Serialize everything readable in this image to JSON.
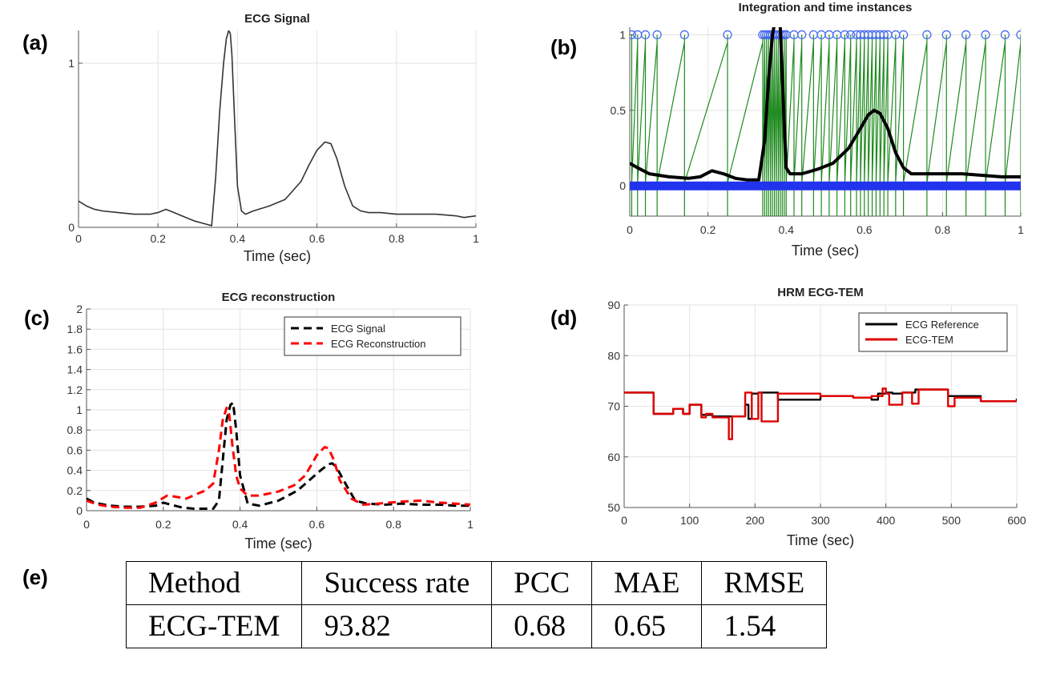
{
  "panel_labels": [
    "(a)",
    "(b)",
    "(c)",
    "(d)",
    "(e)"
  ],
  "chart_data": [
    {
      "id": "a",
      "type": "line",
      "title": "ECG Signal",
      "xlabel": "Time (sec)",
      "ylabel": "",
      "xlim": [
        0,
        1
      ],
      "ylim": [
        0,
        1.2
      ],
      "xticks": [
        0,
        0.2,
        0.4,
        0.6,
        0.8,
        1
      ],
      "xtick_labels": [
        "0",
        "0.2",
        "0.4",
        "0.6",
        "0.8",
        "1"
      ],
      "yticks": [
        0,
        1
      ],
      "ytick_labels": [
        "0",
        "1"
      ],
      "grid": true,
      "series": [
        {
          "color": "#333333",
          "style": "solid",
          "x": [
            0,
            0.02,
            0.04,
            0.06,
            0.1,
            0.14,
            0.18,
            0.2,
            0.22,
            0.24,
            0.26,
            0.29,
            0.32,
            0.335,
            0.345,
            0.355,
            0.365,
            0.372,
            0.378,
            0.382,
            0.386,
            0.392,
            0.4,
            0.41,
            0.42,
            0.44,
            0.48,
            0.52,
            0.56,
            0.58,
            0.6,
            0.62,
            0.635,
            0.65,
            0.67,
            0.69,
            0.71,
            0.73,
            0.76,
            0.8,
            0.85,
            0.9,
            0.95,
            0.97,
            1
          ],
          "y": [
            0.16,
            0.13,
            0.11,
            0.1,
            0.09,
            0.08,
            0.08,
            0.09,
            0.11,
            0.09,
            0.07,
            0.04,
            0.02,
            0.01,
            0.3,
            0.7,
            1.0,
            1.15,
            1.2,
            1.18,
            1.05,
            0.7,
            0.25,
            0.1,
            0.08,
            0.1,
            0.13,
            0.17,
            0.28,
            0.38,
            0.47,
            0.52,
            0.51,
            0.42,
            0.25,
            0.13,
            0.1,
            0.09,
            0.09,
            0.08,
            0.08,
            0.08,
            0.07,
            0.06,
            0.07
          ]
        }
      ]
    },
    {
      "id": "b",
      "type": "line",
      "title": "Integration and time instances",
      "xlabel": "Time (sec)",
      "ylabel": "",
      "xlim": [
        0,
        1
      ],
      "ylim": [
        -0.2,
        1.05
      ],
      "xticks": [
        0,
        0.2,
        0.4,
        0.6,
        0.8,
        1
      ],
      "xtick_labels": [
        "0",
        "0.2",
        "0.4",
        "0.6",
        "0.8",
        "1"
      ],
      "yticks": [
        0,
        0.5,
        1
      ],
      "ytick_labels": [
        "0",
        "0.5",
        "1"
      ],
      "grid": true,
      "series": [
        {
          "color": "#000000",
          "style": "thick",
          "x": [
            0,
            0.02,
            0.05,
            0.1,
            0.15,
            0.18,
            0.21,
            0.24,
            0.27,
            0.3,
            0.33,
            0.345,
            0.355,
            0.365,
            0.372,
            0.378,
            0.385,
            0.392,
            0.4,
            0.41,
            0.44,
            0.48,
            0.52,
            0.56,
            0.59,
            0.61,
            0.625,
            0.64,
            0.66,
            0.68,
            0.7,
            0.72,
            0.76,
            0.8,
            0.85,
            0.9,
            0.95,
            1
          ],
          "y": [
            0.15,
            0.12,
            0.08,
            0.06,
            0.05,
            0.06,
            0.1,
            0.08,
            0.05,
            0.04,
            0.04,
            0.3,
            0.7,
            1.0,
            1.1,
            1.15,
            1.05,
            0.6,
            0.12,
            0.08,
            0.08,
            0.11,
            0.15,
            0.25,
            0.38,
            0.47,
            0.5,
            0.48,
            0.38,
            0.22,
            0.12,
            0.08,
            0.08,
            0.08,
            0.08,
            0.07,
            0.06,
            0.06
          ]
        }
      ],
      "spike_times": [
        0.005,
        0.02,
        0.04,
        0.07,
        0.14,
        0.25,
        0.34,
        0.345,
        0.35,
        0.355,
        0.36,
        0.365,
        0.37,
        0.375,
        0.38,
        0.385,
        0.39,
        0.395,
        0.4,
        0.42,
        0.44,
        0.47,
        0.49,
        0.51,
        0.53,
        0.55,
        0.565,
        0.58,
        0.59,
        0.6,
        0.61,
        0.62,
        0.63,
        0.64,
        0.65,
        0.66,
        0.68,
        0.7,
        0.76,
        0.81,
        0.86,
        0.91,
        0.96,
        1.0
      ],
      "spike_level": 1,
      "baseline_marker_level": 0
    },
    {
      "id": "c",
      "type": "line",
      "title": "ECG reconstruction",
      "xlabel": "Time (sec)",
      "ylabel": "",
      "xlim": [
        0,
        1
      ],
      "ylim": [
        0,
        2
      ],
      "xticks": [
        0,
        0.2,
        0.4,
        0.6,
        0.8,
        1
      ],
      "xtick_labels": [
        "0",
        "0.2",
        "0.4",
        "0.6",
        "0.8",
        "1"
      ],
      "yticks": [
        0,
        0.2,
        0.4,
        0.6,
        0.8,
        1,
        1.2,
        1.4,
        1.6,
        1.8,
        2
      ],
      "ytick_labels": [
        "0",
        "0.2",
        "0.4",
        "0.6",
        "0.8",
        "1",
        "1.2",
        "1.4",
        "1.6",
        "1.8",
        "2"
      ],
      "grid": true,
      "legend_position": "top-right",
      "series": [
        {
          "name": "ECG Signal",
          "color": "#000000",
          "style": "dashed",
          "x": [
            0,
            0.02,
            0.06,
            0.1,
            0.14,
            0.18,
            0.2,
            0.22,
            0.25,
            0.28,
            0.31,
            0.33,
            0.345,
            0.355,
            0.365,
            0.375,
            0.382,
            0.39,
            0.4,
            0.42,
            0.45,
            0.5,
            0.55,
            0.58,
            0.61,
            0.63,
            0.64,
            0.65,
            0.67,
            0.7,
            0.73,
            0.78,
            0.82,
            0.87,
            0.92,
            0.96,
            1
          ],
          "y": [
            0.12,
            0.08,
            0.05,
            0.04,
            0.04,
            0.05,
            0.08,
            0.06,
            0.03,
            0.02,
            0.02,
            0.02,
            0.1,
            0.5,
            0.9,
            1.05,
            1.07,
            0.8,
            0.35,
            0.07,
            0.05,
            0.1,
            0.2,
            0.3,
            0.4,
            0.46,
            0.47,
            0.44,
            0.3,
            0.1,
            0.07,
            0.06,
            0.07,
            0.06,
            0.06,
            0.05,
            0.05
          ]
        },
        {
          "name": "ECG Reconstruction",
          "color": "#ff0000",
          "style": "dashed",
          "x": [
            0,
            0.03,
            0.06,
            0.1,
            0.14,
            0.18,
            0.21,
            0.23,
            0.26,
            0.29,
            0.31,
            0.33,
            0.345,
            0.355,
            0.365,
            0.372,
            0.38,
            0.39,
            0.4,
            0.42,
            0.45,
            0.5,
            0.54,
            0.57,
            0.6,
            0.62,
            0.63,
            0.645,
            0.66,
            0.69,
            0.72,
            0.76,
            0.82,
            0.87,
            0.92,
            0.96,
            1
          ],
          "y": [
            0.1,
            0.06,
            0.04,
            0.03,
            0.03,
            0.08,
            0.15,
            0.14,
            0.12,
            0.17,
            0.2,
            0.27,
            0.6,
            0.9,
            1.02,
            0.95,
            0.65,
            0.35,
            0.22,
            0.15,
            0.15,
            0.19,
            0.25,
            0.35,
            0.55,
            0.63,
            0.62,
            0.5,
            0.3,
            0.12,
            0.06,
            0.07,
            0.09,
            0.1,
            0.08,
            0.07,
            0.06
          ]
        }
      ]
    },
    {
      "id": "d",
      "type": "line",
      "title": "HRM ECG-TEM",
      "xlabel": "Time (sec)",
      "ylabel": "",
      "xlim": [
        0,
        600
      ],
      "ylim": [
        50,
        90
      ],
      "xticks": [
        0,
        100,
        200,
        300,
        400,
        500,
        600
      ],
      "xtick_labels": [
        "0",
        "100",
        "200",
        "300",
        "400",
        "500",
        "600"
      ],
      "yticks": [
        50,
        60,
        70,
        80,
        90
      ],
      "ytick_labels": [
        "50",
        "60",
        "70",
        "80",
        "90"
      ],
      "grid": true,
      "legend_position": "top-right",
      "series": [
        {
          "name": "ECG Reference",
          "color": "#000000",
          "style": "step",
          "x": [
            0,
            45,
            75,
            90,
            100,
            118,
            135,
            185,
            190,
            195,
            205,
            235,
            300,
            350,
            378,
            388,
            400,
            410,
            425,
            445,
            495,
            545,
            600
          ],
          "y": [
            72.7,
            68.5,
            69.5,
            68.5,
            70.3,
            68.3,
            68.0,
            70.3,
            67.5,
            72.5,
            72.7,
            71.3,
            72.0,
            71.7,
            71.3,
            72.5,
            72.7,
            72.5,
            72.7,
            73.3,
            72.0,
            71.0,
            71.5
          ]
        },
        {
          "name": "ECG-TEM",
          "color": "#e00000",
          "style": "step",
          "x": [
            0,
            45,
            75,
            90,
            100,
            118,
            125,
            135,
            155,
            160,
            165,
            185,
            195,
            205,
            210,
            235,
            300,
            350,
            378,
            395,
            400,
            405,
            425,
            440,
            450,
            495,
            505,
            545,
            600
          ],
          "y": [
            72.7,
            68.5,
            69.5,
            68.5,
            70.3,
            67.8,
            68.5,
            67.8,
            67.8,
            63.5,
            68.0,
            72.7,
            67.5,
            72.7,
            67.0,
            72.5,
            72.0,
            71.7,
            72.0,
            73.5,
            72.5,
            70.3,
            72.7,
            70.5,
            73.3,
            70.0,
            71.7,
            71.0,
            71.0
          ]
        }
      ]
    }
  ],
  "table": {
    "headers": [
      "Method",
      "Success rate",
      "PCC",
      "MAE",
      "RMSE"
    ],
    "rows": [
      [
        "ECG-TEM",
        "93.82",
        "0.68",
        "0.65",
        "1.54"
      ]
    ]
  }
}
